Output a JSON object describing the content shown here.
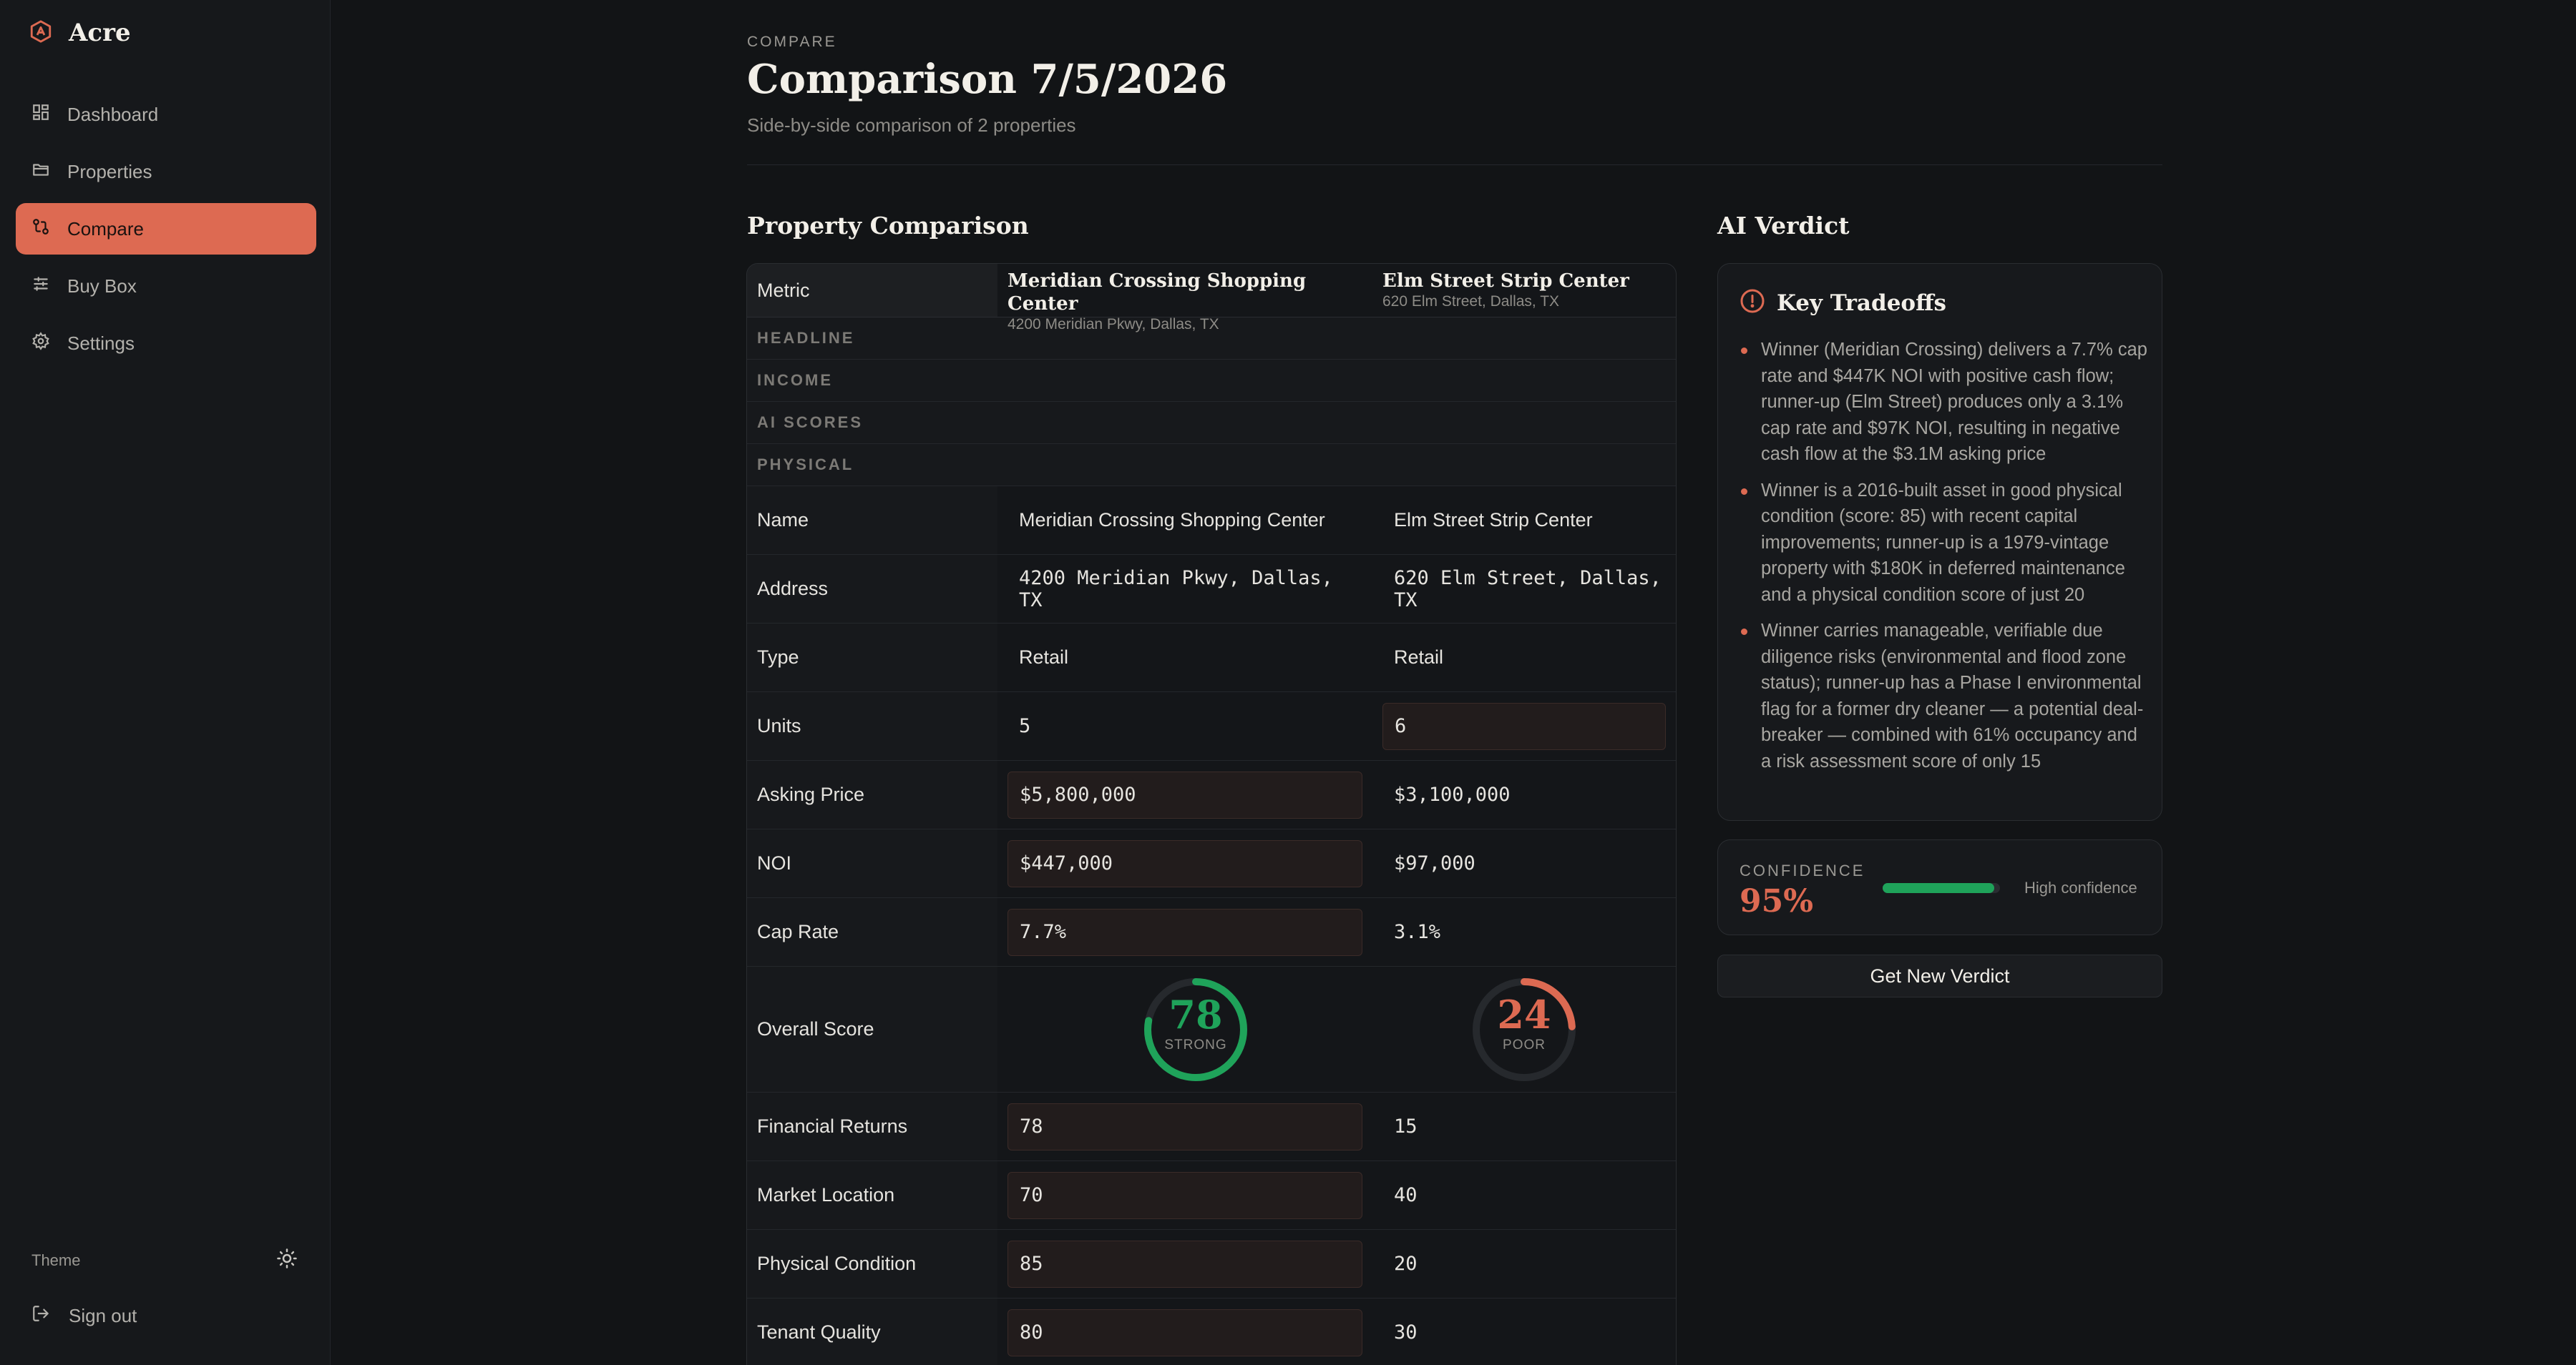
{
  "app": {
    "name": "Acre"
  },
  "sidebar": {
    "items": [
      {
        "label": "Dashboard",
        "icon": "dashboard-icon"
      },
      {
        "label": "Properties",
        "icon": "folder-icon"
      },
      {
        "label": "Compare",
        "icon": "compare-icon",
        "active": true
      },
      {
        "label": "Buy Box",
        "icon": "sliders-icon"
      },
      {
        "label": "Settings",
        "icon": "gear-icon"
      }
    ],
    "theme_label": "Theme",
    "signout_label": "Sign out"
  },
  "header": {
    "eyebrow": "COMPARE",
    "title": "Comparison 7/5/2026",
    "subtitle": "Side-by-side comparison of 2 properties"
  },
  "comparison": {
    "title": "Property Comparison",
    "metric_header": "Metric",
    "properties": [
      {
        "name": "Meridian Crossing Shopping Center",
        "address": "4200 Meridian Pkwy, Dallas, TX"
      },
      {
        "name": "Elm Street Strip Center",
        "address": "620 Elm Street, Dallas, TX"
      }
    ],
    "groups": [
      "HEADLINE",
      "INCOME",
      "AI SCORES",
      "PHYSICAL"
    ],
    "rows": [
      {
        "metric": "Name",
        "a": "Meridian Crossing Shopping Center",
        "b": "Elm Street Strip Center",
        "winner": ""
      },
      {
        "metric": "Address",
        "a": "4200 Meridian Pkwy, Dallas, TX",
        "b": "620 Elm Street, Dallas, TX",
        "winner": ""
      },
      {
        "metric": "Type",
        "a": "Retail",
        "b": "Retail",
        "winner": ""
      },
      {
        "metric": "Units",
        "a": "5",
        "b": "6",
        "winner": "b"
      },
      {
        "metric": "Asking Price",
        "a": "$5,800,000",
        "b": "$3,100,000",
        "winner": "a"
      },
      {
        "metric": "NOI",
        "a": "$447,000",
        "b": "$97,000",
        "winner": "a"
      },
      {
        "metric": "Cap Rate",
        "a": "7.7%",
        "b": "3.1%",
        "winner": "a"
      }
    ],
    "overall": {
      "metric": "Overall Score",
      "a": {
        "score": "78",
        "label": "STRONG",
        "value": 78,
        "color": "#1fa35a"
      },
      "b": {
        "score": "24",
        "label": "POOR",
        "value": 24,
        "color": "#dd6a52"
      }
    },
    "score_rows": [
      {
        "metric": "Financial Returns",
        "a": "78",
        "b": "15",
        "winner": "a"
      },
      {
        "metric": "Market Location",
        "a": "70",
        "b": "40",
        "winner": "a"
      },
      {
        "metric": "Physical Condition",
        "a": "85",
        "b": "20",
        "winner": "a"
      },
      {
        "metric": "Tenant Quality",
        "a": "80",
        "b": "30",
        "winner": "a"
      }
    ]
  },
  "verdict": {
    "title": "AI Verdict",
    "tradeoffs_title": "Key Tradeoffs",
    "bullets": [
      "Winner (Meridian Crossing) delivers a 7.7% cap rate and $447K NOI with positive cash flow; runner-up (Elm Street) produces only a 3.1% cap rate and $97K NOI, resulting in negative cash flow at the $3.1M asking price",
      "Winner is a 2016-built asset in good physical condition (score: 85) with recent capital improvements; runner-up is a 1979-vintage property with $180K in deferred maintenance and a physical condition score of just 20",
      "Winner carries manageable, verifiable due diligence risks (environmental and flood zone status); runner-up has a Phase I environmental flag for a former dry cleaner — a potential deal-breaker — combined with 61% occupancy and a risk assessment score of only 15"
    ],
    "confidence_label": "CONFIDENCE",
    "confidence_value": "95%",
    "confidence_fraction": 0.95,
    "confidence_text": "High confidence",
    "button_label": "Get New Verdict"
  },
  "colors": {
    "accent": "#dd6a52",
    "good": "#1fa35a",
    "background": "#121416"
  }
}
